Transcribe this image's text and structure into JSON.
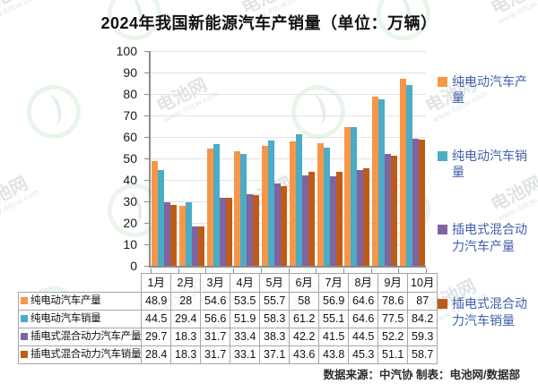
{
  "title": "2024年我国新能源汽车产销量（单位：万辆）",
  "source_note": "数据来源：中汽协  制表：电池网/数据部",
  "watermark": {
    "brand": "电池网",
    "url": "www.itdcw.com"
  },
  "colors": {
    "series": [
      "#F79646",
      "#4BACC6",
      "#8064A2",
      "#BE5B17"
    ],
    "legend_text": "#4060AA",
    "axis": "#8C8C8C",
    "gridline": "#E2E2E2",
    "table_border": "#A6A6A6",
    "title_text": "#111111"
  },
  "chart_data": {
    "type": "bar",
    "title": "2024年我国新能源汽车产销量（单位：万辆）",
    "categories": [
      "1月",
      "2月",
      "3月",
      "4月",
      "5月",
      "6月",
      "7月",
      "8月",
      "9月",
      "10月"
    ],
    "series": [
      {
        "name": "纯电动汽车产量",
        "color": "#F79646",
        "values": [
          48.9,
          28,
          54.6,
          53.5,
          55.7,
          58,
          56.9,
          64.6,
          78.6,
          87
        ]
      },
      {
        "name": "纯电动汽车销量",
        "color": "#4BACC6",
        "values": [
          44.5,
          29.4,
          56.6,
          51.9,
          58.3,
          61.2,
          55.1,
          64.6,
          77.5,
          84.2
        ]
      },
      {
        "name": "插电式混合动力汽车产量",
        "color": "#8064A2",
        "values": [
          29.7,
          18.3,
          31.7,
          33.4,
          38.3,
          42.2,
          41.5,
          44.5,
          52.2,
          59.3
        ]
      },
      {
        "name": "插电式混合动力汽车销量",
        "color": "#BE5B17",
        "values": [
          28.4,
          18.3,
          31.7,
          33.1,
          37.1,
          43.6,
          43.8,
          45.3,
          51.1,
          58.7
        ]
      }
    ],
    "xlabel": "",
    "ylabel": "",
    "ylim": [
      0,
      100
    ],
    "ytick_step": 10,
    "grid": true,
    "legend_position": "right",
    "data_table_shown": true
  }
}
